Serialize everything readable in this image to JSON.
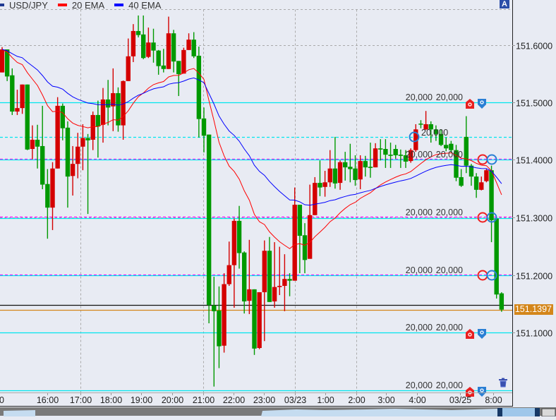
{
  "legend": {
    "symbol": "USD/JPY",
    "ema_fast": "20 EMA",
    "ema_slow": "40 EMA",
    "symbol_color": "#1f3a93",
    "ema_fast_color": "#ff0000",
    "ema_slow_color": "#0000ff"
  },
  "top_right_badge": "A",
  "current_price_label": "151.1397",
  "colors": {
    "up_candle": "#d40000",
    "down_candle": "#009900",
    "background": "#e8ebf3",
    "current_price": "#d4861a"
  },
  "chart_data": {
    "type": "candlestick",
    "title": "",
    "xlabel": "",
    "ylabel": "",
    "ylim": [
      150.98,
      151.68
    ],
    "grid": true,
    "legend_position": "top-left",
    "indicators": [
      {
        "name": "20 EMA",
        "period": 20,
        "color": "#ff0000"
      },
      {
        "name": "40 EMA",
        "period": 40,
        "color": "#0000ff"
      }
    ],
    "y_ticks": [
      "151.6000",
      "151.5000",
      "151.4000",
      "151.3000",
      "151.2000",
      "151.1000"
    ],
    "y_tick_values": [
      151.6,
      151.5,
      151.4,
      151.3,
      151.2,
      151.1
    ],
    "x_ticks": [
      {
        "label": "0",
        "index": -1.5,
        "grid": false
      },
      {
        "label": "16:00",
        "index": 9,
        "grid": false
      },
      {
        "label": "17:00",
        "index": 15.5,
        "grid": true
      },
      {
        "label": "18:00",
        "index": 21.6,
        "grid": false
      },
      {
        "label": "19:00",
        "index": 27.6,
        "grid": false
      },
      {
        "label": "20:00",
        "index": 33.7,
        "grid": false
      },
      {
        "label": "21:00",
        "index": 39.8,
        "grid": true
      },
      {
        "label": "22:00",
        "index": 45.9,
        "grid": false
      },
      {
        "label": "23:00",
        "index": 51.9,
        "grid": false
      },
      {
        "label": "03/23",
        "index": 58,
        "grid": true
      },
      {
        "label": "1:00",
        "index": 64,
        "grid": false
      },
      {
        "label": "2:00",
        "index": 70.2,
        "grid": true
      },
      {
        "label": "3:00",
        "index": 76.1,
        "grid": false
      },
      {
        "label": "4:00",
        "index": 82.2,
        "grid": false
      },
      {
        "label": "03/25",
        "index": 90.8,
        "grid": false
      },
      {
        "label": "8:00",
        "index": 97.3,
        "grid": false
      }
    ],
    "ohlc": [
      [
        151.552,
        151.596,
        151.552,
        151.592
      ],
      [
        151.592,
        151.592,
        151.537,
        151.545
      ],
      [
        151.547,
        151.559,
        151.478,
        151.484
      ],
      [
        151.484,
        151.522,
        151.478,
        151.49
      ],
      [
        151.49,
        151.531,
        151.48,
        151.531
      ],
      [
        151.531,
        151.531,
        151.417,
        151.418
      ],
      [
        151.419,
        151.46,
        151.401,
        151.435
      ],
      [
        151.435,
        151.461,
        151.385,
        151.423
      ],
      [
        151.424,
        151.494,
        151.349,
        151.357
      ],
      [
        151.358,
        151.384,
        151.263,
        151.317
      ],
      [
        151.317,
        151.396,
        151.278,
        151.385
      ],
      [
        151.385,
        151.509,
        151.385,
        151.494
      ],
      [
        151.494,
        151.498,
        151.434,
        151.455
      ],
      [
        151.456,
        151.467,
        151.317,
        151.371
      ],
      [
        151.372,
        151.424,
        151.338,
        151.393
      ],
      [
        151.393,
        151.447,
        151.368,
        151.423
      ],
      [
        151.423,
        151.462,
        151.382,
        151.438
      ],
      [
        151.438,
        151.445,
        151.306,
        151.434
      ],
      [
        151.435,
        151.484,
        151.417,
        151.478
      ],
      [
        151.478,
        151.503,
        151.404,
        151.458
      ],
      [
        151.461,
        151.525,
        151.43,
        151.505
      ],
      [
        151.505,
        151.539,
        151.46,
        151.491
      ],
      [
        151.493,
        151.559,
        151.45,
        151.516
      ],
      [
        151.516,
        151.526,
        151.449,
        151.46
      ],
      [
        151.46,
        151.538,
        151.435,
        151.537
      ],
      [
        151.537,
        151.611,
        151.537,
        151.58
      ],
      [
        151.58,
        151.636,
        151.57,
        151.624
      ],
      [
        151.624,
        151.651,
        151.613,
        151.617
      ],
      [
        151.618,
        151.651,
        151.575,
        151.577
      ],
      [
        151.579,
        151.63,
        151.577,
        151.604
      ],
      [
        151.604,
        151.628,
        151.569,
        151.59
      ],
      [
        151.59,
        151.591,
        151.548,
        151.563
      ],
      [
        151.564,
        151.593,
        151.552,
        151.558
      ],
      [
        151.558,
        151.649,
        151.558,
        151.62
      ],
      [
        151.62,
        151.626,
        151.552,
        151.571
      ],
      [
        151.572,
        151.572,
        151.511,
        151.549
      ],
      [
        151.55,
        151.595,
        151.55,
        151.591
      ],
      [
        151.591,
        151.62,
        151.591,
        151.609
      ],
      [
        151.609,
        151.622,
        151.577,
        151.58
      ],
      [
        151.581,
        151.597,
        151.439,
        151.471
      ],
      [
        151.472,
        151.491,
        151.413,
        151.442
      ],
      [
        151.444,
        151.444,
        151.116,
        151.148
      ],
      [
        151.147,
        151.197,
        151.006,
        151.137
      ],
      [
        151.138,
        151.18,
        151.038,
        151.076
      ],
      [
        151.077,
        151.203,
        151.065,
        151.184
      ],
      [
        151.184,
        151.258,
        151.181,
        151.217
      ],
      [
        151.217,
        151.298,
        151.143,
        151.294
      ],
      [
        151.294,
        151.32,
        151.211,
        151.238
      ],
      [
        151.239,
        151.241,
        151.133,
        151.154
      ],
      [
        151.155,
        151.261,
        151.132,
        151.175
      ],
      [
        151.175,
        151.175,
        151.061,
        151.072
      ],
      [
        151.073,
        151.17,
        151.071,
        151.17
      ],
      [
        151.17,
        151.26,
        151.085,
        151.242
      ],
      [
        151.242,
        151.266,
        151.153,
        151.153
      ],
      [
        151.154,
        151.257,
        151.143,
        151.179
      ],
      [
        151.179,
        151.249,
        151.165,
        151.181
      ],
      [
        151.181,
        151.236,
        151.137,
        151.193
      ],
      [
        151.193,
        151.203,
        151.163,
        151.19
      ],
      [
        151.19,
        151.352,
        151.19,
        151.322
      ],
      [
        151.322,
        151.322,
        151.203,
        151.268
      ],
      [
        151.269,
        151.29,
        151.203,
        151.226
      ],
      [
        151.228,
        151.357,
        151.228,
        151.304
      ],
      [
        151.304,
        151.37,
        151.304,
        151.36
      ],
      [
        151.36,
        151.399,
        151.337,
        151.352
      ],
      [
        151.353,
        151.381,
        151.336,
        151.361
      ],
      [
        151.361,
        151.417,
        151.353,
        151.385
      ],
      [
        151.385,
        151.44,
        151.35,
        151.359
      ],
      [
        151.36,
        151.399,
        151.348,
        151.396
      ],
      [
        151.396,
        151.414,
        151.364,
        151.387
      ],
      [
        151.388,
        151.428,
        151.361,
        151.384
      ],
      [
        151.385,
        151.408,
        151.355,
        151.365
      ],
      [
        151.366,
        151.408,
        151.349,
        151.398
      ],
      [
        151.398,
        151.407,
        151.371,
        151.387
      ],
      [
        151.388,
        151.43,
        151.369,
        151.386
      ],
      [
        151.387,
        151.429,
        151.387,
        151.42
      ],
      [
        151.42,
        151.436,
        151.399,
        151.418
      ],
      [
        151.419,
        151.436,
        151.386,
        151.409
      ],
      [
        151.409,
        151.43,
        151.386,
        151.407
      ],
      [
        151.419,
        151.426,
        151.402,
        151.408
      ],
      [
        151.409,
        151.418,
        151.386,
        151.407
      ],
      [
        151.408,
        151.417,
        151.386,
        151.397
      ],
      [
        151.398,
        151.42,
        151.395,
        151.417
      ],
      [
        151.417,
        151.462,
        151.414,
        151.453
      ],
      [
        151.463,
        151.469,
        151.455,
        151.462
      ],
      [
        151.453,
        151.485,
        151.452,
        151.462
      ],
      [
        151.462,
        151.467,
        151.43,
        151.453
      ],
      [
        151.453,
        151.46,
        151.433,
        151.445
      ],
      [
        151.445,
        151.453,
        151.424,
        151.426
      ],
      [
        151.426,
        151.439,
        151.415,
        151.42
      ],
      [
        151.428,
        151.433,
        151.413,
        151.417
      ],
      [
        151.417,
        151.426,
        151.363,
        151.369
      ],
      [
        151.37,
        151.384,
        151.353,
        151.355
      ],
      [
        151.44,
        151.476,
        151.377,
        151.39
      ],
      [
        151.39,
        151.393,
        151.355,
        151.371
      ],
      [
        151.371,
        151.377,
        151.334,
        151.348
      ],
      [
        151.348,
        151.371,
        151.347,
        151.361
      ],
      [
        151.363,
        151.384,
        151.361,
        151.382
      ],
      [
        151.382,
        151.39,
        151.257,
        151.295
      ],
      [
        151.298,
        151.3,
        151.159,
        151.166
      ],
      [
        151.168,
        151.17,
        151.136,
        151.1397
      ]
    ],
    "price_lines": [
      {
        "price": 151.5,
        "color": "#00e5ee",
        "style": "solid"
      },
      {
        "price": 151.44,
        "color": "#00e5ee",
        "style": "dashed"
      },
      {
        "price": 151.402,
        "color": "#ff00ff",
        "style": "dashed"
      },
      {
        "price": 151.4,
        "color": "#00e5ee",
        "style": "solid"
      },
      {
        "price": 151.301,
        "color": "#ff00ff",
        "style": "dashed"
      },
      {
        "price": 151.299,
        "color": "#00e5ee",
        "style": "solid"
      },
      {
        "price": 151.201,
        "color": "#ff00ff",
        "style": "dashed"
      },
      {
        "price": 151.199,
        "color": "#00e5ee",
        "style": "solid"
      },
      {
        "price": 151.1,
        "color": "#00e5ee",
        "style": "solid"
      },
      {
        "price": 151.0,
        "color": "#00e5ee",
        "style": "solid"
      },
      {
        "price": 151.148,
        "color": "#111111",
        "style": "solid"
      },
      {
        "price": 151.1397,
        "color": "#d4861a",
        "style": "solid"
      }
    ],
    "order_markers": [
      {
        "price": 151.5,
        "labels": [
          "20,000",
          "20,000"
        ],
        "kind": "tags"
      },
      {
        "price": 151.44,
        "labels": [
          "20,000"
        ],
        "kind": "circle-single"
      },
      {
        "price": 151.4,
        "labels": [
          "20,000",
          "20,000"
        ],
        "kind": "circles"
      },
      {
        "price": 151.3,
        "labels": [
          "20,000",
          "20,000"
        ],
        "kind": "circles"
      },
      {
        "price": 151.2,
        "labels": [
          "20,000",
          "20,000"
        ],
        "kind": "circles"
      },
      {
        "price": 151.1,
        "labels": [
          "20,000",
          "20,000"
        ],
        "kind": "tags"
      },
      {
        "price": 151.0,
        "labels": [
          "20,000",
          "20,000"
        ],
        "kind": "tags"
      }
    ]
  }
}
